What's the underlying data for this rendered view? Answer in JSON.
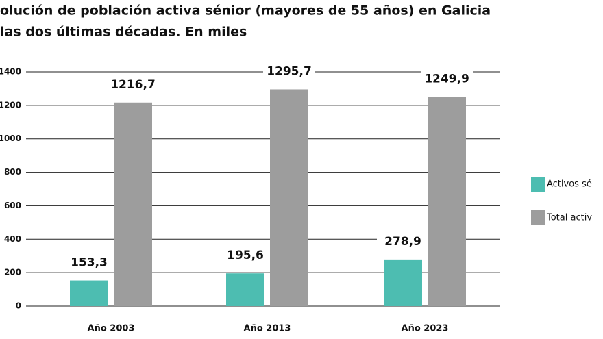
{
  "chart_data": {
    "type": "bar",
    "title": "olución de población activa sénior (mayores de 55 años) en Galicia",
    "subtitle": "las dos últimas décadas. En miles",
    "categories": [
      "Año 2003",
      "Año 2013",
      "Año 2023"
    ],
    "series": [
      {
        "name": "Activos sé",
        "color": "#4dbdb1",
        "values": [
          153.3,
          195.6,
          278.9
        ],
        "value_labels": [
          "153,3",
          "195,6",
          "278,9"
        ]
      },
      {
        "name": "Total activ",
        "color": "#9d9d9d",
        "values": [
          1216.7,
          1295.7,
          1249.9
        ],
        "value_labels": [
          "1216,7",
          "1295,7",
          "1249,9"
        ]
      }
    ],
    "ylim": [
      0,
      1400
    ],
    "yticks": [
      0,
      200,
      400,
      600,
      800,
      1000,
      1200,
      1400
    ],
    "grid": true
  }
}
